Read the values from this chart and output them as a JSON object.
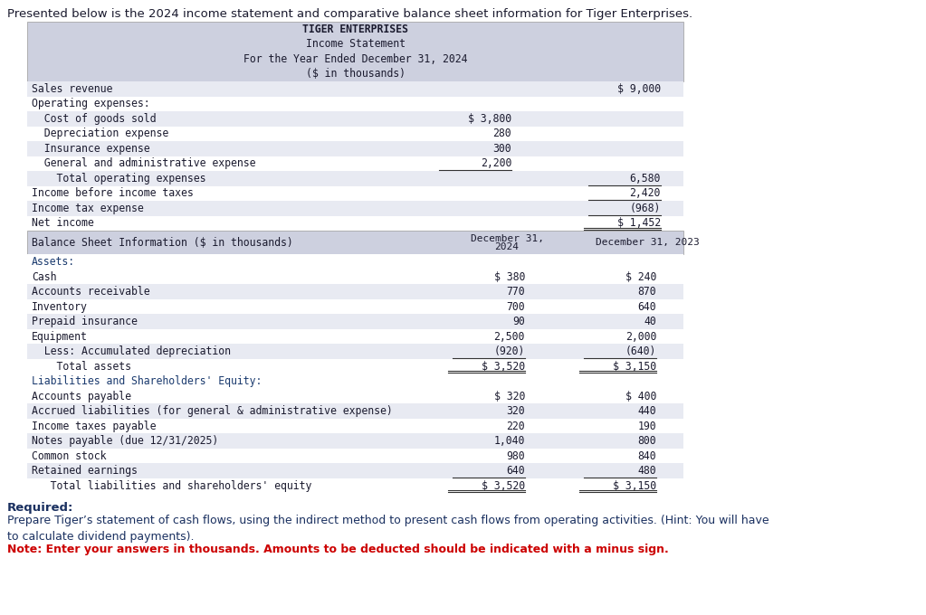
{
  "intro_text": "Presented below is the 2024 income statement and comparative balance sheet information for Tiger Enterprises.",
  "header_lines": [
    "TIGER ENTERPRISES",
    "Income Statement",
    "For the Year Ended December 31, 2024",
    "($ in thousands)"
  ],
  "header_bg": "#cdd0df",
  "row_bg_odd": "#e8eaf2",
  "row_bg_even": "#ffffff",
  "text_color": "#1a1a2e",
  "header_text_color": "#1a1a2e",
  "value_color": "#1a1a2e",
  "section_color": "#1a3a6e",
  "note_color": "#cc0000",
  "required_text_color": "#1a3060",
  "income_rows": [
    {
      "label": "Sales revenue",
      "col1": "",
      "col2": "$ 9,000",
      "indent": 0,
      "line_below_col1": false,
      "line_below_col2": false,
      "double_line_col2": false
    },
    {
      "label": "Operating expenses:",
      "col1": "",
      "col2": "",
      "indent": 0,
      "line_below_col1": false,
      "line_below_col2": false,
      "double_line_col2": false
    },
    {
      "label": "  Cost of goods sold",
      "col1": "$ 3,800",
      "col2": "",
      "indent": 0,
      "line_below_col1": false,
      "line_below_col2": false,
      "double_line_col2": false
    },
    {
      "label": "  Depreciation expense",
      "col1": "280",
      "col2": "",
      "indent": 0,
      "line_below_col1": false,
      "line_below_col2": false,
      "double_line_col2": false
    },
    {
      "label": "  Insurance expense",
      "col1": "300",
      "col2": "",
      "indent": 0,
      "line_below_col1": false,
      "line_below_col2": false,
      "double_line_col2": false
    },
    {
      "label": "  General and administrative expense",
      "col1": "2,200",
      "col2": "",
      "indent": 0,
      "line_below_col1": true,
      "line_below_col2": false,
      "double_line_col2": false
    },
    {
      "label": "    Total operating expenses",
      "col1": "",
      "col2": "6,580",
      "indent": 0,
      "line_below_col1": false,
      "line_below_col2": true,
      "double_line_col2": false
    },
    {
      "label": "Income before income taxes",
      "col1": "",
      "col2": "2,420",
      "indent": 0,
      "line_below_col1": false,
      "line_below_col2": true,
      "double_line_col2": false
    },
    {
      "label": "Income tax expense",
      "col1": "",
      "col2": "(968)",
      "indent": 0,
      "line_below_col1": false,
      "line_below_col2": true,
      "double_line_col2": false
    },
    {
      "label": "Net income",
      "col1": "",
      "col2": "$ 1,452",
      "indent": 0,
      "line_below_col1": false,
      "line_below_col2": false,
      "double_line_col2": true
    }
  ],
  "bs_header": "Balance Sheet Information ($ in thousands)",
  "bs_col1_header_line1": "December 31,",
  "bs_col1_header_line2": "2024",
  "bs_col2_header": "December 31, 2023",
  "bs_rows": [
    {
      "label": "Assets:",
      "col1": "",
      "col2": "",
      "indent": 0,
      "is_section": true,
      "line_below_both": false,
      "double_line_both": false
    },
    {
      "label": "Cash",
      "col1": "$ 380",
      "col2": "$ 240",
      "indent": 0,
      "is_section": false,
      "line_below_both": false,
      "double_line_both": false
    },
    {
      "label": "Accounts receivable",
      "col1": "770",
      "col2": "870",
      "indent": 0,
      "is_section": false,
      "line_below_both": false,
      "double_line_both": false
    },
    {
      "label": "Inventory",
      "col1": "700",
      "col2": "640",
      "indent": 0,
      "is_section": false,
      "line_below_both": false,
      "double_line_both": false
    },
    {
      "label": "Prepaid insurance",
      "col1": "90",
      "col2": "40",
      "indent": 0,
      "is_section": false,
      "line_below_both": false,
      "double_line_both": false
    },
    {
      "label": "Equipment",
      "col1": "2,500",
      "col2": "2,000",
      "indent": 0,
      "is_section": false,
      "line_below_both": false,
      "double_line_both": false
    },
    {
      "label": "  Less: Accumulated depreciation",
      "col1": "(920)",
      "col2": "(640)",
      "indent": 0,
      "is_section": false,
      "line_below_both": true,
      "double_line_both": false
    },
    {
      "label": "    Total assets",
      "col1": "$ 3,520",
      "col2": "$ 3,150",
      "indent": 0,
      "is_section": false,
      "line_below_both": false,
      "double_line_both": true
    },
    {
      "label": "Liabilities and Shareholders' Equity:",
      "col1": "",
      "col2": "",
      "indent": 0,
      "is_section": true,
      "line_below_both": false,
      "double_line_both": false
    },
    {
      "label": "Accounts payable",
      "col1": "$ 320",
      "col2": "$ 400",
      "indent": 0,
      "is_section": false,
      "line_below_both": false,
      "double_line_both": false
    },
    {
      "label": "Accrued liabilities (for general & administrative expense)",
      "col1": "320",
      "col2": "440",
      "indent": 0,
      "is_section": false,
      "line_below_both": false,
      "double_line_both": false
    },
    {
      "label": "Income taxes payable",
      "col1": "220",
      "col2": "190",
      "indent": 0,
      "is_section": false,
      "line_below_both": false,
      "double_line_both": false
    },
    {
      "label": "Notes payable (due 12/31/2025)",
      "col1": "1,040",
      "col2": "800",
      "indent": 0,
      "is_section": false,
      "line_below_both": false,
      "double_line_both": false
    },
    {
      "label": "Common stock",
      "col1": "980",
      "col2": "840",
      "indent": 0,
      "is_section": false,
      "line_below_both": false,
      "double_line_both": false
    },
    {
      "label": "Retained earnings",
      "col1": "640",
      "col2": "480",
      "indent": 0,
      "is_section": false,
      "line_below_both": true,
      "double_line_both": false
    },
    {
      "label": "   Total liabilities and shareholders' equity",
      "col1": "$ 3,520",
      "col2": "$ 3,150",
      "indent": 0,
      "is_section": false,
      "line_below_both": false,
      "double_line_both": true
    }
  ],
  "required_label": "Required:",
  "required_body": "Prepare Tiger’s statement of cash flows, using the indirect method to present cash flows from operating activities. (Hint: You will have\nto calculate dividend payments).",
  "note_text": "Note: Enter your answers in thousands. Amounts to be deducted should be indicated with a minus sign."
}
